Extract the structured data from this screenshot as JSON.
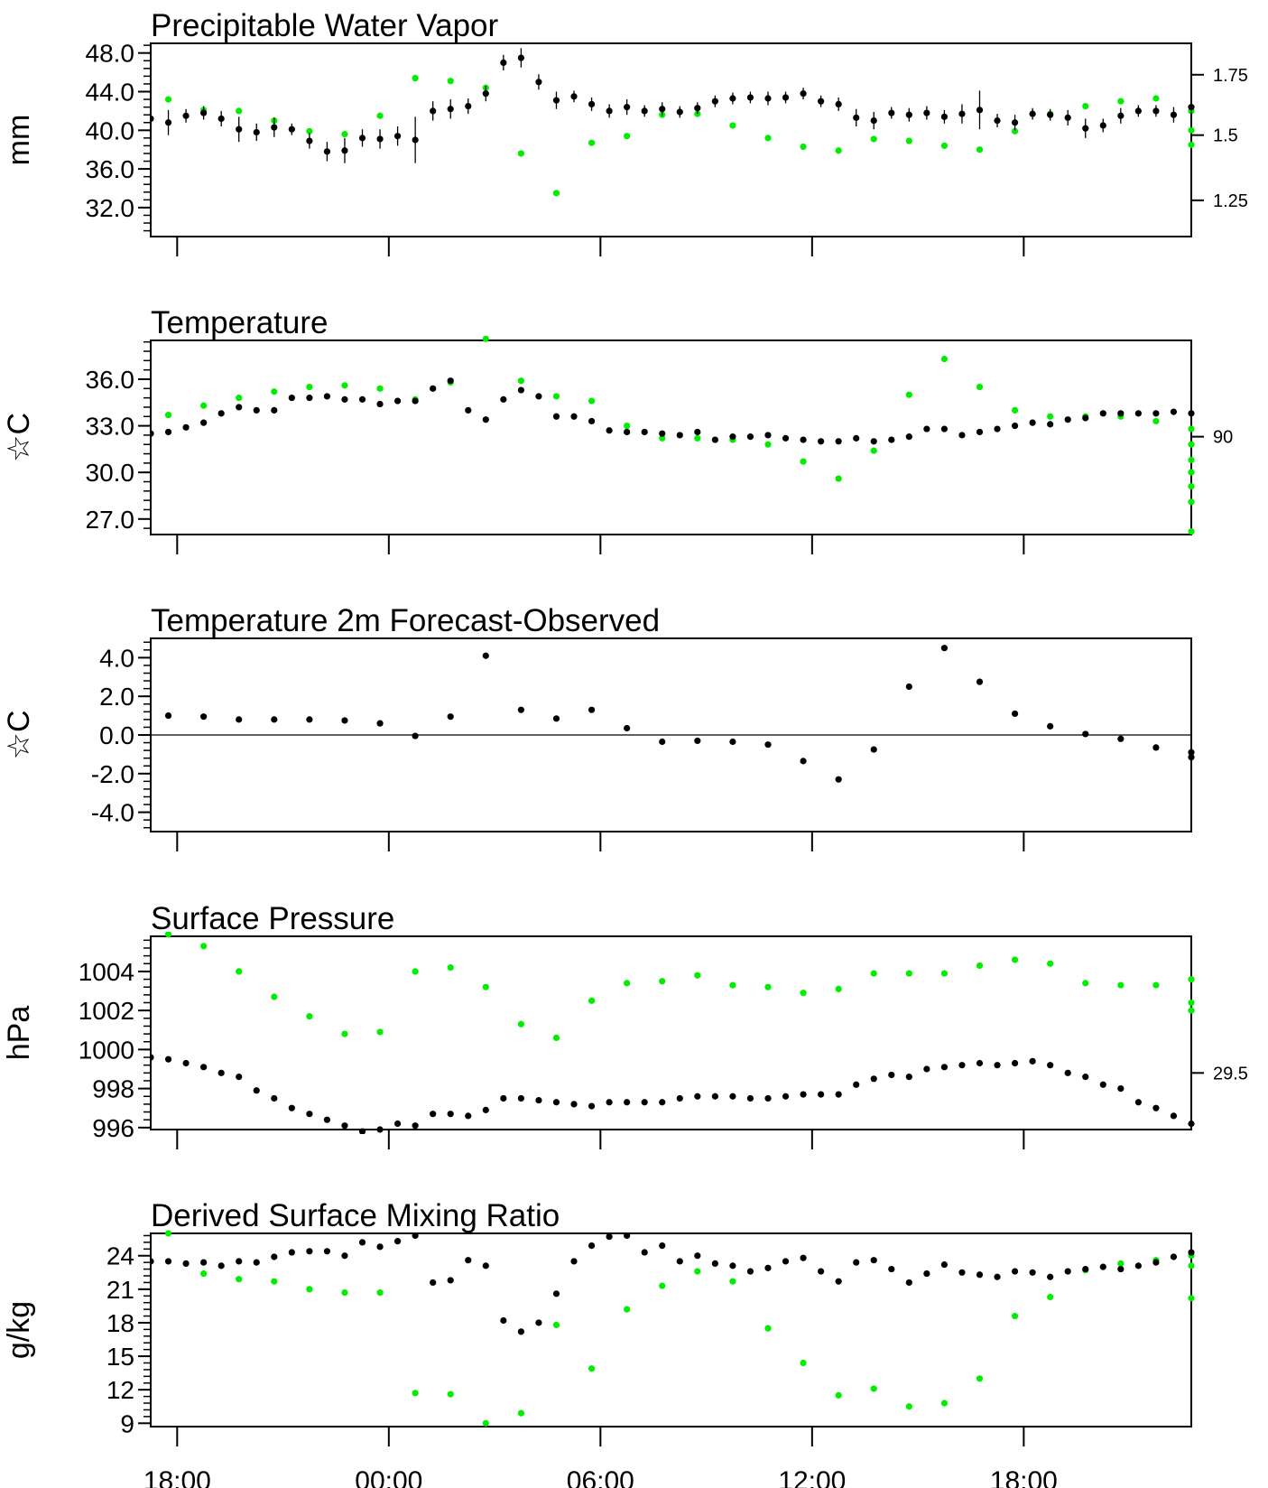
{
  "figure": {
    "time_axis": {
      "tick_labels": [
        "18:00",
        "00:00",
        "06:00",
        "12:00",
        "18:00"
      ],
      "tick_hours": [
        0,
        6,
        12,
        18,
        24
      ],
      "xlim": [
        -0.75,
        28.75
      ]
    },
    "colors": {
      "observed": "#00ee00",
      "forecast": "#000000"
    }
  },
  "chart_data": [
    {
      "type": "scatter",
      "title": "Precipitable Water Vapor",
      "ylabel": "mm",
      "ylim": [
        29.0,
        49.0
      ],
      "yticks": [
        32,
        36,
        40,
        44,
        48
      ],
      "ytick_labels": [
        "32.0",
        "36.0",
        "40.0",
        "44.0",
        "48.0"
      ],
      "right_axis": {
        "ticks": [
          32.75,
          39.5,
          45.75
        ],
        "labels": [
          "1.25",
          "1.5",
          "1.75"
        ]
      },
      "series": [
        {
          "color": "green",
          "x": [
            -0.25,
            0.75,
            1.75,
            2.75,
            3.75,
            4.75,
            5.75,
            6.75,
            7.75,
            8.75,
            9.75,
            10.75,
            11.75,
            12.75,
            13.75,
            14.75,
            15.75,
            16.75,
            17.75,
            18.75,
            19.75,
            20.75,
            21.75,
            22.75,
            23.75,
            24.75,
            25.75,
            26.75,
            27.75,
            28.75,
            28.75,
            28.75
          ],
          "y": [
            43.2,
            42.1,
            42.0,
            41.0,
            39.9,
            39.6,
            41.5,
            45.4,
            45.1,
            44.4,
            37.6,
            33.5,
            38.7,
            39.4,
            41.6,
            41.7,
            40.5,
            39.2,
            38.3,
            37.9,
            39.1,
            38.9,
            38.4,
            38.0,
            39.9,
            41.7,
            42.5,
            43.0,
            43.3,
            42.0,
            40.0,
            38.5
          ]
        },
        {
          "color": "black",
          "x": [
            -0.75,
            -0.25,
            0.25,
            0.75,
            1.25,
            1.75,
            2.25,
            2.75,
            3.25,
            3.75,
            4.25,
            4.75,
            5.25,
            5.75,
            6.25,
            6.75,
            7.25,
            7.75,
            8.25,
            8.75,
            9.25,
            9.75,
            10.25,
            10.75,
            11.25,
            11.75,
            12.25,
            12.75,
            13.25,
            13.75,
            14.25,
            14.75,
            15.25,
            15.75,
            16.25,
            16.75,
            17.25,
            17.75,
            18.25,
            18.75,
            19.25,
            19.75,
            20.25,
            20.75,
            21.25,
            21.75,
            22.25,
            22.75,
            23.25,
            23.75,
            24.25,
            24.75,
            25.25,
            25.75,
            26.25,
            26.75,
            27.25,
            27.75,
            28.25,
            28.75
          ],
          "y": [
            41.2,
            40.8,
            41.5,
            41.8,
            41.2,
            40.1,
            39.8,
            40.3,
            40.1,
            38.9,
            37.8,
            37.9,
            39.2,
            39.1,
            39.4,
            39.0,
            42.0,
            42.2,
            42.5,
            43.8,
            47.0,
            47.5,
            45.0,
            43.1,
            43.5,
            42.7,
            42.0,
            42.4,
            42.0,
            42.2,
            41.9,
            42.3,
            43.0,
            43.3,
            43.4,
            43.3,
            43.4,
            43.8,
            43.0,
            42.7,
            41.3,
            41.0,
            41.8,
            41.6,
            41.8,
            41.4,
            41.7,
            42.1,
            41.0,
            40.8,
            41.7,
            41.6,
            41.3,
            40.2,
            40.5,
            41.5,
            42.0,
            42.0,
            41.6,
            42.4
          ],
          "error": [
            1.0,
            1.3,
            0.7,
            0.7,
            0.8,
            1.3,
            0.9,
            1.0,
            0.6,
            0.8,
            1.0,
            1.3,
            0.9,
            1.0,
            1.0,
            2.4,
            1.0,
            1.0,
            0.8,
            0.8,
            0.8,
            1.0,
            0.8,
            0.9,
            0.6,
            0.7,
            0.7,
            0.8,
            0.6,
            0.7,
            0.6,
            0.6,
            0.6,
            0.6,
            0.6,
            0.7,
            0.6,
            0.6,
            0.6,
            0.7,
            0.9,
            0.9,
            0.6,
            0.7,
            0.7,
            0.7,
            1.0,
            2.0,
            0.7,
            0.8,
            0.6,
            0.6,
            0.8,
            1.0,
            0.7,
            0.8,
            0.6,
            0.6,
            0.8,
            0.8
          ]
        }
      ]
    },
    {
      "type": "scatter",
      "title": "Temperature",
      "ylabel": "☆C",
      "ylim": [
        26.0,
        38.5
      ],
      "yticks": [
        27,
        30,
        33,
        36
      ],
      "ytick_labels": [
        "27.0",
        "30.0",
        "33.0",
        "36.0"
      ],
      "right_axis": {
        "ticks": [
          32.3
        ],
        "labels": [
          "90"
        ]
      },
      "series": [
        {
          "color": "green",
          "x": [
            -0.25,
            0.75,
            1.75,
            2.75,
            3.75,
            4.75,
            5.75,
            6.75,
            7.75,
            8.75,
            9.75,
            10.75,
            11.75,
            12.75,
            13.75,
            14.75,
            15.75,
            16.75,
            17.75,
            18.75,
            19.75,
            20.75,
            21.75,
            22.75,
            23.75,
            24.75,
            25.75,
            26.75,
            27.75,
            28.75,
            28.75,
            28.75,
            28.75,
            28.75,
            28.75,
            28.75
          ],
          "y": [
            33.7,
            34.3,
            34.8,
            35.2,
            35.5,
            35.6,
            35.4,
            34.7,
            35.8,
            38.6,
            35.9,
            34.9,
            34.6,
            33.0,
            32.2,
            32.2,
            32.1,
            31.8,
            30.7,
            29.6,
            31.4,
            35.0,
            37.3,
            35.5,
            34.0,
            33.6,
            33.6,
            33.6,
            33.3,
            32.8,
            31.8,
            30.8,
            30.0,
            29.1,
            28.1,
            26.2
          ]
        },
        {
          "color": "black",
          "x": [
            -0.75,
            -0.25,
            0.25,
            0.75,
            1.25,
            1.75,
            2.25,
            2.75,
            3.25,
            3.75,
            4.25,
            4.75,
            5.25,
            5.75,
            6.25,
            6.75,
            7.25,
            7.75,
            8.25,
            8.75,
            9.25,
            9.75,
            10.25,
            10.75,
            11.25,
            11.75,
            12.25,
            12.75,
            13.25,
            13.75,
            14.25,
            14.75,
            15.25,
            15.75,
            16.25,
            16.75,
            17.25,
            17.75,
            18.25,
            18.75,
            19.25,
            19.75,
            20.25,
            20.75,
            21.25,
            21.75,
            22.25,
            22.75,
            23.25,
            23.75,
            24.25,
            24.75,
            25.25,
            25.75,
            26.25,
            26.75,
            27.25,
            27.75,
            28.25,
            28.75
          ],
          "y": [
            32.5,
            32.6,
            32.9,
            33.2,
            33.8,
            34.2,
            34.0,
            34.0,
            34.8,
            34.8,
            34.9,
            34.7,
            34.7,
            34.4,
            34.6,
            34.6,
            35.4,
            35.9,
            34.0,
            33.4,
            34.7,
            35.3,
            34.9,
            33.6,
            33.6,
            33.3,
            32.7,
            32.6,
            32.6,
            32.5,
            32.4,
            32.6,
            32.1,
            32.3,
            32.3,
            32.4,
            32.2,
            32.1,
            32.0,
            32.0,
            32.2,
            32.0,
            32.1,
            32.3,
            32.8,
            32.8,
            32.4,
            32.6,
            32.8,
            33.0,
            33.2,
            33.1,
            33.4,
            33.5,
            33.8,
            33.8,
            33.8,
            33.8,
            33.9,
            33.8
          ]
        }
      ]
    },
    {
      "type": "scatter",
      "title": "Temperature 2m Forecast-Observed",
      "ylabel": "☆C",
      "ylim": [
        -5.0,
        5.0
      ],
      "yticks": [
        -4,
        -2,
        0,
        2,
        4
      ],
      "ytick_labels": [
        "-4.0",
        "-2.0",
        "0.0",
        "2.0",
        "4.0"
      ],
      "zero_line": true,
      "series": [
        {
          "color": "black",
          "x": [
            -0.25,
            0.75,
            1.75,
            2.75,
            3.75,
            4.75,
            5.75,
            6.75,
            7.75,
            8.75,
            9.75,
            10.75,
            11.75,
            12.75,
            13.75,
            14.75,
            15.75,
            16.75,
            17.75,
            18.75,
            19.75,
            20.75,
            21.75,
            22.75,
            23.75,
            24.75,
            25.75,
            26.75,
            27.75,
            28.75,
            28.75
          ],
          "y": [
            1.0,
            0.95,
            0.8,
            0.8,
            0.8,
            0.75,
            0.6,
            -0.05,
            0.95,
            4.1,
            1.3,
            0.85,
            1.3,
            0.35,
            -0.35,
            -0.3,
            -0.35,
            -0.5,
            -1.35,
            -2.3,
            -0.75,
            2.5,
            4.5,
            2.75,
            1.1,
            0.45,
            0.05,
            -0.2,
            -0.65,
            -0.9,
            -1.15
          ]
        }
      ]
    },
    {
      "type": "scatter",
      "title": "Surface Pressure",
      "ylabel": "hPa",
      "ylim": [
        995.9,
        1005.8
      ],
      "yticks": [
        996,
        998,
        1000,
        1002,
        1004
      ],
      "ytick_labels": [
        "996",
        "998",
        "1000",
        "1002",
        "1004"
      ],
      "right_axis": {
        "ticks": [
          998.8
        ],
        "labels": [
          "29.5"
        ]
      },
      "series": [
        {
          "color": "green",
          "x": [
            -0.25,
            0.75,
            1.75,
            2.75,
            3.75,
            4.75,
            5.75,
            6.75,
            7.75,
            8.75,
            9.75,
            10.75,
            11.75,
            12.75,
            13.75,
            14.75,
            15.75,
            16.75,
            17.75,
            18.75,
            19.75,
            20.75,
            21.75,
            22.75,
            23.75,
            24.75,
            25.75,
            26.75,
            27.75,
            28.75,
            28.75,
            28.75
          ],
          "y": [
            1005.9,
            1005.3,
            1004.0,
            1002.7,
            1001.7,
            1000.8,
            1000.9,
            1004.0,
            1004.2,
            1003.2,
            1001.3,
            1000.6,
            1002.5,
            1003.4,
            1003.5,
            1003.8,
            1003.3,
            1003.2,
            1002.9,
            1003.1,
            1003.9,
            1003.9,
            1003.9,
            1004.3,
            1004.6,
            1004.4,
            1003.4,
            1003.3,
            1003.3,
            1003.6,
            1002.4,
            1002.0
          ]
        },
        {
          "color": "black",
          "x": [
            -0.75,
            -0.25,
            0.25,
            0.75,
            1.25,
            1.75,
            2.25,
            2.75,
            3.25,
            3.75,
            4.25,
            4.75,
            5.25,
            5.75,
            6.25,
            6.75,
            7.25,
            7.75,
            8.25,
            8.75,
            9.25,
            9.75,
            10.25,
            10.75,
            11.25,
            11.75,
            12.25,
            12.75,
            13.25,
            13.75,
            14.25,
            14.75,
            15.25,
            15.75,
            16.25,
            16.75,
            17.25,
            17.75,
            18.25,
            18.75,
            19.25,
            19.75,
            20.25,
            20.75,
            21.25,
            21.75,
            22.25,
            22.75,
            23.25,
            23.75,
            24.25,
            24.75,
            25.25,
            25.75,
            26.25,
            26.75,
            27.25,
            27.75,
            28.25,
            28.75
          ],
          "y": [
            999.6,
            999.5,
            999.3,
            999.1,
            998.8,
            998.6,
            997.9,
            997.5,
            997.0,
            996.7,
            996.4,
            996.1,
            995.8,
            995.9,
            996.2,
            996.1,
            996.7,
            996.7,
            996.6,
            996.9,
            997.5,
            997.5,
            997.4,
            997.3,
            997.2,
            997.1,
            997.3,
            997.3,
            997.3,
            997.3,
            997.5,
            997.6,
            997.6,
            997.6,
            997.5,
            997.5,
            997.6,
            997.7,
            997.7,
            997.7,
            998.2,
            998.5,
            998.7,
            998.6,
            999.0,
            999.1,
            999.2,
            999.3,
            999.2,
            999.3,
            999.4,
            999.2,
            998.8,
            998.6,
            998.2,
            998.0,
            997.3,
            997.0,
            996.6,
            996.2
          ]
        }
      ]
    },
    {
      "type": "scatter",
      "title": "Derived Surface Mixing Ratio",
      "ylabel": "g/kg",
      "ylim": [
        8.7,
        26.0
      ],
      "yticks": [
        9,
        12,
        15,
        18,
        21,
        24
      ],
      "ytick_labels": [
        "9",
        "12",
        "15",
        "18",
        "21",
        "24"
      ],
      "series": [
        {
          "color": "green",
          "x": [
            -0.25,
            0.75,
            1.75,
            2.75,
            3.75,
            4.75,
            5.75,
            6.75,
            7.75,
            8.75,
            9.75,
            10.75,
            11.75,
            12.75,
            13.75,
            14.75,
            15.75,
            16.75,
            17.75,
            18.75,
            19.75,
            20.75,
            21.75,
            22.75,
            23.75,
            24.75,
            25.75,
            26.75,
            27.75,
            28.75,
            28.75,
            28.75
          ],
          "y": [
            26.0,
            22.4,
            21.9,
            21.7,
            21.0,
            20.7,
            20.7,
            11.7,
            11.6,
            9.0,
            9.9,
            17.8,
            13.9,
            19.2,
            21.3,
            22.6,
            21.7,
            17.5,
            14.4,
            11.5,
            12.1,
            10.5,
            10.8,
            13.0,
            18.6,
            20.3,
            22.7,
            23.3,
            23.6,
            24.0,
            23.1,
            20.2
          ]
        },
        {
          "color": "black",
          "x": [
            -0.75,
            -0.25,
            0.25,
            0.75,
            1.25,
            1.75,
            2.25,
            2.75,
            3.25,
            3.75,
            4.25,
            4.75,
            5.25,
            5.75,
            6.25,
            6.75,
            7.25,
            7.75,
            8.25,
            8.75,
            9.25,
            9.75,
            10.25,
            10.75,
            11.25,
            11.75,
            12.25,
            12.75,
            13.25,
            13.75,
            14.25,
            14.75,
            15.25,
            15.75,
            16.25,
            16.75,
            17.25,
            17.75,
            18.25,
            18.75,
            19.25,
            19.75,
            20.25,
            20.75,
            21.25,
            21.75,
            22.25,
            22.75,
            23.25,
            23.75,
            24.25,
            24.75,
            25.25,
            25.75,
            26.25,
            26.75,
            27.25,
            27.75,
            28.25,
            28.75
          ],
          "y": [
            23.5,
            23.5,
            23.3,
            23.4,
            23.1,
            23.5,
            23.4,
            23.9,
            24.3,
            24.4,
            24.4,
            24.0,
            25.2,
            24.8,
            25.3,
            25.8,
            21.6,
            21.8,
            23.6,
            23.1,
            18.2,
            17.2,
            18.0,
            20.6,
            23.5,
            24.9,
            25.7,
            25.8,
            24.3,
            24.9,
            23.5,
            24.0,
            23.3,
            23.1,
            22.6,
            22.9,
            23.5,
            23.8,
            22.6,
            21.7,
            23.4,
            23.6,
            22.8,
            21.6,
            22.4,
            23.2,
            22.5,
            22.3,
            22.1,
            22.6,
            22.5,
            22.1,
            22.6,
            22.8,
            23.0,
            22.8,
            23.1,
            23.4,
            23.9,
            24.3
          ]
        }
      ]
    }
  ]
}
